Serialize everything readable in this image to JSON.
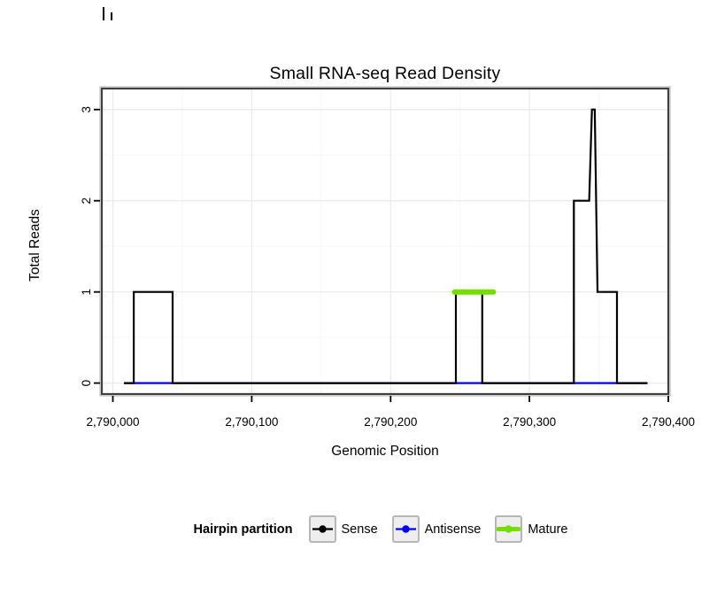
{
  "title": "Small RNA-seq Read Density",
  "axes": {
    "x_label": "Genomic Position",
    "y_label": "Total Reads"
  },
  "legend": {
    "title": "Hairpin partition",
    "items": [
      {
        "label": "Sense",
        "color": "#000000",
        "key_line_width": 2.2
      },
      {
        "label": "Antisense",
        "color": "#0000FF",
        "key_line_width": 2.2
      },
      {
        "label": "Mature",
        "color": "#76DD00",
        "key_line_width": 5
      }
    ]
  },
  "chart_data": {
    "type": "line",
    "title": "Small RNA-seq Read Density",
    "xlabel": "Genomic Position",
    "ylabel": "Total Reads",
    "xlim": [
      2789992,
      2790400
    ],
    "ylim": [
      -0.12,
      3.23
    ],
    "x_tick_values": [
      2790000,
      2790100,
      2790200,
      2790300,
      2790400
    ],
    "x_tick_labels": [
      "2,790,000",
      "2,790,100",
      "2,790,200",
      "2,790,300",
      "2,790,400"
    ],
    "x_minor_values": [
      2790050,
      2790150,
      2790250,
      2790350
    ],
    "y_tick_values": [
      0,
      1,
      2,
      3
    ],
    "y_tick_labels": [
      "0",
      "1",
      "2",
      "3"
    ],
    "y_minor_values": [
      0.5,
      1.5,
      2.5
    ],
    "grid": true,
    "legend_position": "bottom",
    "series": [
      {
        "name": "Antisense",
        "color": "#0000FF",
        "width": 2.2,
        "linecap": "butt",
        "points": [
          [
            2790008,
            0
          ],
          [
            2790385,
            0
          ]
        ]
      },
      {
        "name": "Sense",
        "color": "#000000",
        "width": 2.2,
        "linecap": "butt",
        "points": [
          [
            2790008,
            0
          ],
          [
            2790015,
            0
          ],
          [
            2790015,
            1
          ],
          [
            2790043,
            1
          ],
          [
            2790043,
            0
          ],
          [
            2790247,
            0
          ],
          [
            2790247,
            1
          ],
          [
            2790266,
            1
          ],
          [
            2790266,
            0
          ],
          [
            2790332,
            0
          ],
          [
            2790332,
            2
          ],
          [
            2790343,
            2
          ],
          [
            2790345,
            3
          ],
          [
            2790347,
            3
          ],
          [
            2790349,
            1
          ],
          [
            2790363,
            1
          ],
          [
            2790363,
            0
          ],
          [
            2790385,
            0
          ]
        ]
      },
      {
        "name": "Mature",
        "color": "#76DD00",
        "width": 6,
        "linecap": "round",
        "points": [
          [
            2790246,
            1
          ],
          [
            2790274,
            1
          ]
        ]
      }
    ]
  }
}
